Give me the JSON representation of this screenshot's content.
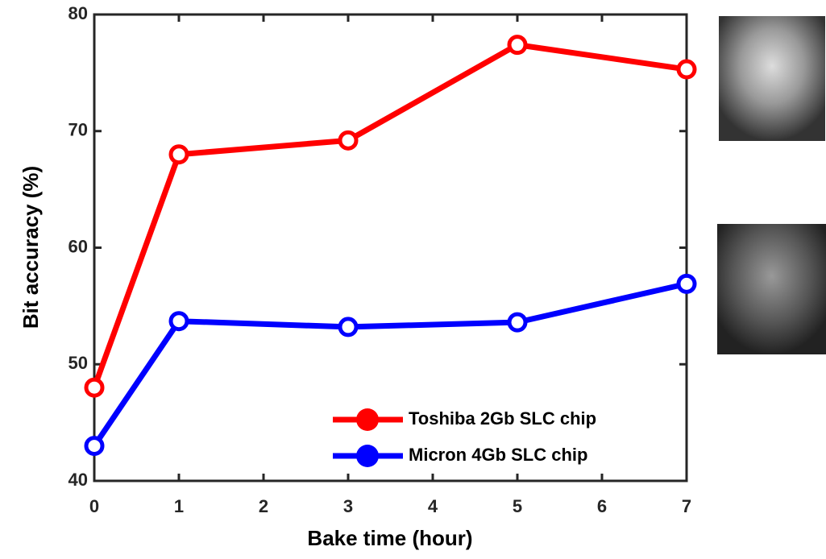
{
  "chart_data": {
    "type": "line",
    "x_label": "Bake time (hour)",
    "y_label": "Bit accuracy (%)",
    "x": [
      0,
      1,
      3,
      5,
      7
    ],
    "series": [
      {
        "name": "Toshiba 2Gb SLC chip",
        "color": "#ff0000",
        "values": [
          48,
          68,
          69.2,
          77.4,
          75.3
        ]
      },
      {
        "name": "Micron 4Gb SLC chip",
        "color": "#0000ff",
        "values": [
          43,
          53.7,
          53.2,
          53.6,
          56.9
        ]
      }
    ],
    "xlim": [
      0,
      7
    ],
    "xticks": [
      0,
      1,
      2,
      3,
      4,
      5,
      6,
      7
    ],
    "ylim": [
      40,
      80
    ],
    "yticks": [
      40,
      50,
      60,
      70,
      80
    ],
    "legend": "lower right"
  }
}
